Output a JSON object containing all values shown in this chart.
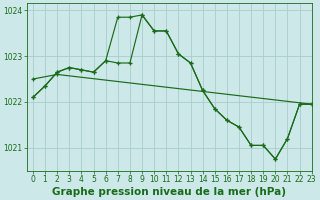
{
  "background_color": "#cce8e8",
  "grid_color": "#aacccc",
  "line_color": "#1a6b1a",
  "title": "Graphe pression niveau de la mer (hPa)",
  "xlim": [
    -0.5,
    23
  ],
  "ylim": [
    1020.5,
    1024.15
  ],
  "yticks": [
    1021,
    1022,
    1023,
    1024
  ],
  "xticks": [
    0,
    1,
    2,
    3,
    4,
    5,
    6,
    7,
    8,
    9,
    10,
    11,
    12,
    13,
    14,
    15,
    16,
    17,
    18,
    19,
    20,
    21,
    22,
    23
  ],
  "series1_x": [
    0,
    1,
    2,
    3,
    4,
    5,
    6,
    7,
    8,
    9,
    10,
    11,
    12,
    13,
    14,
    15,
    16,
    17,
    18,
    19,
    20,
    21,
    22,
    23
  ],
  "series1_y": [
    1022.1,
    1022.35,
    1022.65,
    1022.75,
    1022.7,
    1022.65,
    1022.9,
    1023.85,
    1023.85,
    1023.9,
    1023.55,
    1023.55,
    1023.05,
    1022.85,
    1022.25,
    1021.85,
    1021.6,
    1021.45,
    1021.05,
    1021.05,
    1020.75,
    1021.2,
    1021.95,
    1021.95
  ],
  "series2_x": [
    0,
    1,
    2,
    3,
    4,
    5,
    6,
    7,
    8,
    9,
    10,
    11,
    12,
    13,
    14,
    15,
    16,
    17,
    18,
    19,
    20,
    21,
    22,
    23
  ],
  "series2_y": [
    1022.1,
    1022.35,
    1022.65,
    1022.75,
    1022.7,
    1022.65,
    1022.9,
    1022.85,
    1022.85,
    1023.9,
    1023.55,
    1023.55,
    1023.05,
    1022.85,
    1022.25,
    1021.85,
    1021.6,
    1021.45,
    1021.05,
    1021.05,
    1020.75,
    1021.2,
    1021.95,
    1021.95
  ],
  "series3_x": [
    0,
    2,
    23
  ],
  "series3_y": [
    1022.5,
    1022.6,
    1021.95
  ],
  "title_fontsize": 7.5,
  "tick_fontsize": 5.5
}
